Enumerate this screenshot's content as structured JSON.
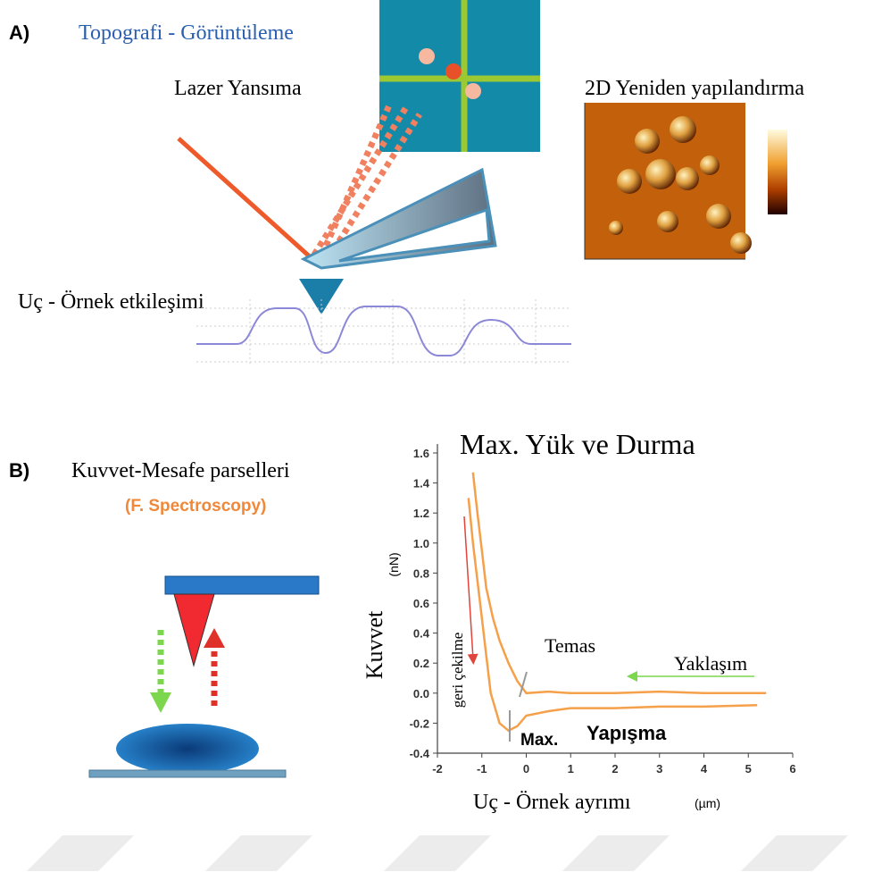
{
  "panel_a": {
    "label": "A)",
    "title": "Topografi - Görüntüleme",
    "laser": "Lazer Yansıma",
    "reconstruction": "2D Yeniden yapılandırma",
    "interaction": "Uç - Örnek etkileşimi"
  },
  "panel_b": {
    "label": "B)",
    "title": "Kuvvet-Mesafe parselleri",
    "subtitle": "(F. Spectroscopy)",
    "plot": {
      "title": "Max. Yük ve Durma",
      "y_label": "Kuvvet",
      "y_unit": "(nN)",
      "x_label": "Uç - Örnek ayrımı",
      "x_unit": "(µm)",
      "annotations": [
        "Temas",
        "Yaklaşım",
        "geri çekilme",
        "Max.",
        "Yapışma"
      ],
      "xlim": [
        -2,
        6
      ],
      "ylim": [
        -0.4,
        1.6
      ],
      "xticks": [
        -2,
        -1,
        0,
        1,
        2,
        3,
        4,
        5,
        6
      ],
      "yticks": [
        -0.4,
        -0.2,
        {
          "value": 0,
          "label": "0.0"
        },
        0.2,
        0.4,
        0.6,
        0.8,
        {
          "value": 1,
          "label": "1.0"
        },
        1.2,
        1.4,
        1.6
      ],
      "color": "#f5a04a",
      "series": [
        {
          "x": [
            -1.2,
            -1.1,
            -1.0,
            -0.9,
            -0.75,
            -0.6,
            -0.4,
            -0.2,
            0,
            0.5,
            1,
            2,
            3,
            4,
            5.4
          ],
          "y": [
            1.47,
            1.2,
            0.95,
            0.7,
            0.5,
            0.35,
            0.2,
            0.08,
            0.0,
            0.01,
            0.0,
            0.0,
            0.01,
            0.0,
            0.0
          ]
        },
        {
          "x": [
            -1.3,
            -1.2,
            -1.1,
            -1.0,
            -0.9,
            -0.8,
            -0.6,
            -0.4,
            -0.2,
            0,
            0.5,
            1,
            2,
            3,
            4,
            5.2
          ],
          "y": [
            1.3,
            1.0,
            0.75,
            0.5,
            0.25,
            0.0,
            -0.2,
            -0.25,
            -0.22,
            -0.15,
            -0.12,
            -0.1,
            -0.1,
            -0.09,
            -0.09,
            -0.08
          ]
        }
      ]
    }
  }
}
